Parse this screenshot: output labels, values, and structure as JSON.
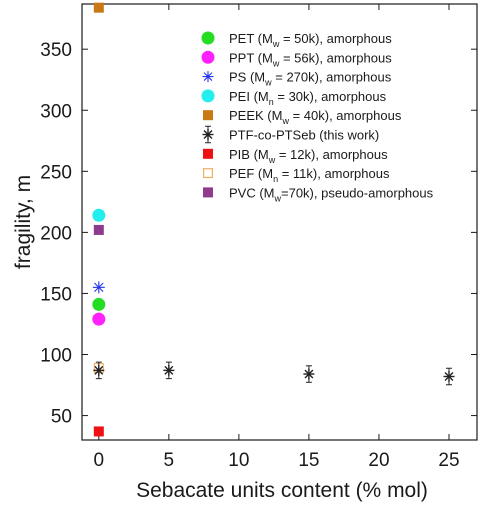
{
  "chart_data": {
    "type": "scatter",
    "xlabel": "Sebacate units content (% mol)",
    "ylabel": "fragility, m",
    "xlim": [
      -1.2,
      27
    ],
    "ylim": [
      30,
      387
    ],
    "xticks": [
      0,
      5,
      10,
      15,
      20,
      25
    ],
    "yticks": [
      50,
      100,
      150,
      200,
      250,
      300,
      350
    ],
    "grid": false,
    "legend_placement": "top-right",
    "series": [
      {
        "name": "PET (M_w = 50k), amorphous",
        "legend": {
          "pre": "PET (M",
          "sub": "w",
          "post": " = 50k), amorphous"
        },
        "marker": "circle",
        "color": "#22dd22",
        "points": [
          {
            "x": 0,
            "y": 141
          }
        ]
      },
      {
        "name": "PPT (M_w = 56k), amorphous",
        "legend": {
          "pre": "PPT (M",
          "sub": "w",
          "post": " = 56k), amorphous"
        },
        "marker": "circle",
        "color": "#ff22ff",
        "points": [
          {
            "x": 0,
            "y": 129
          }
        ]
      },
      {
        "name": "PS (M_w = 270k), amorphous",
        "legend": {
          "pre": "PS (M",
          "sub": "w",
          "post": " = 270k), amorphous"
        },
        "marker": "asterisk",
        "color": "#2233ee",
        "points": [
          {
            "x": 0,
            "y": 155
          }
        ]
      },
      {
        "name": "PEI (M_n = 30k), amorphous",
        "legend": {
          "pre": "PEI (M",
          "sub": "n",
          "post": " = 30k), amorphous"
        },
        "marker": "circle",
        "color": "#22eeee",
        "points": [
          {
            "x": 0,
            "y": 214
          }
        ]
      },
      {
        "name": "PEEK (M_w = 40k), amorphous",
        "legend": {
          "pre": "PEEK (M",
          "sub": "w",
          "post": " = 40k), amorphous"
        },
        "marker": "square",
        "color": "#c87814",
        "points": [
          {
            "x": 0,
            "y": 384
          }
        ]
      },
      {
        "name": "PTF-co-PTSeb (this work)",
        "legend": {
          "pre": "PTF-co-PTSeb (this work)",
          "sub": "",
          "post": ""
        },
        "marker": "asterisk-errorbar",
        "color": "#222222",
        "points": [
          {
            "x": 0,
            "y": 87
          },
          {
            "x": 5,
            "y": 87
          },
          {
            "x": 15,
            "y": 84
          },
          {
            "x": 25,
            "y": 82
          }
        ]
      },
      {
        "name": "PIB (M_w = 12k), amorphous",
        "legend": {
          "pre": "PIB (M",
          "sub": "w",
          "post": " = 12k), amorphous"
        },
        "marker": "square",
        "color": "#ee1111",
        "points": [
          {
            "x": 0,
            "y": 37
          }
        ]
      },
      {
        "name": "PEF (M_n = 11k), amorphous",
        "legend": {
          "pre": "PEF (M",
          "sub": "n",
          "post": " = 11k), amorphous"
        },
        "marker": "square-open",
        "color": "#f0b060",
        "points": [
          {
            "x": 0,
            "y": 89
          }
        ]
      },
      {
        "name": "PVC (M_w=70k), pseudo-amorphous",
        "legend": {
          "pre": "PVC (M",
          "sub": "w",
          "post": "=70k), pseudo-amorphous"
        },
        "marker": "square",
        "color": "#8e3a8e",
        "points": [
          {
            "x": 0,
            "y": 202
          }
        ]
      }
    ]
  }
}
